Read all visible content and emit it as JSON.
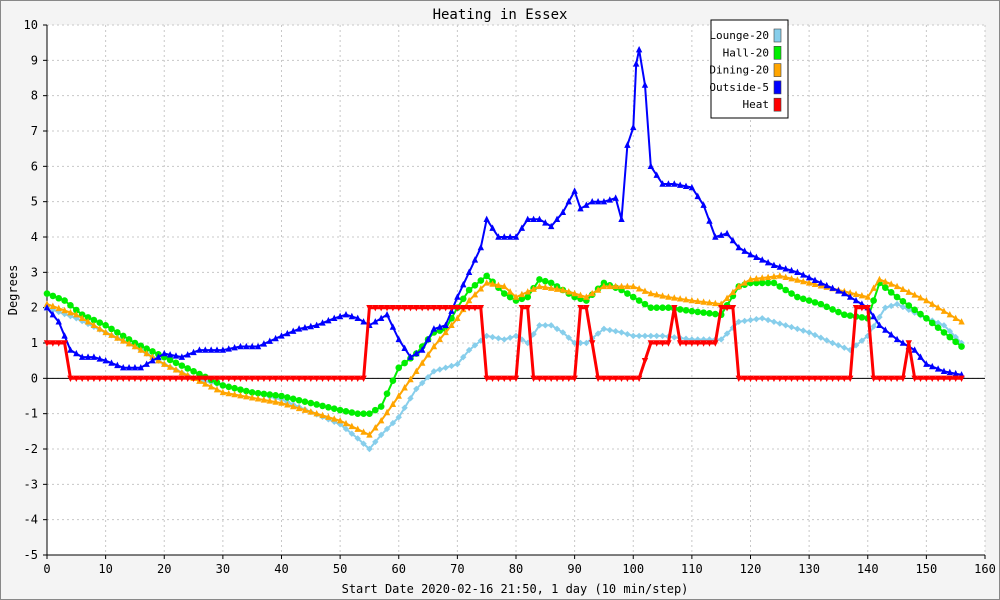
{
  "chart_data": {
    "type": "line",
    "title": "Heating in Essex",
    "xlabel": "Start Date 2020-02-16 21:50, 1 day (10 min/step)",
    "ylabel": "Degrees",
    "xlim": [
      0,
      160
    ],
    "ylim": [
      -5,
      10
    ],
    "xticks": [
      "0",
      "10",
      "20",
      "30",
      "40",
      "50",
      "60",
      "70",
      "80",
      "90",
      "100",
      "110",
      "120",
      "130",
      "140",
      "150",
      "160"
    ],
    "yticks": [
      "-5",
      "-4",
      "-3",
      "-2",
      "-1",
      "0",
      "1",
      "2",
      "3",
      "4",
      "5",
      "6",
      "7",
      "8",
      "9",
      "10"
    ],
    "grid": true,
    "legend_position": "top-right",
    "series": [
      {
        "name": "Lounge-20",
        "color": "#87ceeb",
        "marker": "diamond",
        "points": [
          [
            0,
            2.0
          ],
          [
            5,
            1.7
          ],
          [
            10,
            1.3
          ],
          [
            15,
            0.9
          ],
          [
            20,
            0.4
          ],
          [
            25,
            0.0
          ],
          [
            30,
            -0.2
          ],
          [
            40,
            -0.6
          ],
          [
            50,
            -1.3
          ],
          [
            53,
            -1.7
          ],
          [
            55,
            -2.0
          ],
          [
            57,
            -1.6
          ],
          [
            60,
            -1.1
          ],
          [
            63,
            -0.3
          ],
          [
            66,
            0.2
          ],
          [
            68,
            0.3
          ],
          [
            70,
            0.4
          ],
          [
            72,
            0.8
          ],
          [
            75,
            1.2
          ],
          [
            78,
            1.1
          ],
          [
            80,
            1.2
          ],
          [
            82,
            1.0
          ],
          [
            84,
            1.5
          ],
          [
            86,
            1.5
          ],
          [
            88,
            1.3
          ],
          [
            90,
            1.0
          ],
          [
            92,
            1.0
          ],
          [
            95,
            1.4
          ],
          [
            98,
            1.3
          ],
          [
            100,
            1.2
          ],
          [
            105,
            1.2
          ],
          [
            110,
            1.1
          ],
          [
            115,
            1.1
          ],
          [
            118,
            1.6
          ],
          [
            122,
            1.7
          ],
          [
            126,
            1.5
          ],
          [
            130,
            1.3
          ],
          [
            134,
            1.0
          ],
          [
            137,
            0.8
          ],
          [
            140,
            1.2
          ],
          [
            143,
            2.0
          ],
          [
            145,
            2.1
          ],
          [
            150,
            1.7
          ],
          [
            153,
            1.5
          ],
          [
            156,
            1.0
          ]
        ]
      },
      {
        "name": "Hall-20",
        "color": "#00ee00",
        "marker": "circle",
        "points": [
          [
            0,
            2.4
          ],
          [
            3,
            2.2
          ],
          [
            6,
            1.8
          ],
          [
            10,
            1.5
          ],
          [
            15,
            1.0
          ],
          [
            20,
            0.6
          ],
          [
            25,
            0.2
          ],
          [
            30,
            -0.2
          ],
          [
            35,
            -0.4
          ],
          [
            40,
            -0.5
          ],
          [
            45,
            -0.7
          ],
          [
            50,
            -0.9
          ],
          [
            53,
            -1.0
          ],
          [
            55,
            -1.0
          ],
          [
            57,
            -0.8
          ],
          [
            60,
            0.3
          ],
          [
            63,
            0.7
          ],
          [
            66,
            1.3
          ],
          [
            68,
            1.4
          ],
          [
            70,
            2.0
          ],
          [
            72,
            2.5
          ],
          [
            75,
            2.9
          ],
          [
            78,
            2.4
          ],
          [
            80,
            2.2
          ],
          [
            82,
            2.3
          ],
          [
            84,
            2.8
          ],
          [
            86,
            2.7
          ],
          [
            88,
            2.5
          ],
          [
            90,
            2.3
          ],
          [
            92,
            2.2
          ],
          [
            95,
            2.7
          ],
          [
            98,
            2.5
          ],
          [
            100,
            2.3
          ],
          [
            103,
            2.0
          ],
          [
            106,
            2.0
          ],
          [
            110,
            1.9
          ],
          [
            115,
            1.8
          ],
          [
            118,
            2.6
          ],
          [
            120,
            2.7
          ],
          [
            124,
            2.7
          ],
          [
            128,
            2.3
          ],
          [
            132,
            2.1
          ],
          [
            136,
            1.8
          ],
          [
            140,
            1.7
          ],
          [
            142,
            2.7
          ],
          [
            145,
            2.3
          ],
          [
            150,
            1.7
          ],
          [
            153,
            1.3
          ],
          [
            156,
            0.9
          ]
        ]
      },
      {
        "name": "Dining-20",
        "color": "#ffa500",
        "marker": "triangle",
        "points": [
          [
            0,
            2.1
          ],
          [
            5,
            1.8
          ],
          [
            10,
            1.3
          ],
          [
            15,
            0.9
          ],
          [
            20,
            0.4
          ],
          [
            25,
            0.0
          ],
          [
            30,
            -0.4
          ],
          [
            40,
            -0.7
          ],
          [
            50,
            -1.2
          ],
          [
            55,
            -1.6
          ],
          [
            57,
            -1.2
          ],
          [
            60,
            -0.5
          ],
          [
            63,
            0.2
          ],
          [
            66,
            0.9
          ],
          [
            68,
            1.3
          ],
          [
            70,
            1.7
          ],
          [
            72,
            2.2
          ],
          [
            75,
            2.7
          ],
          [
            78,
            2.6
          ],
          [
            80,
            2.3
          ],
          [
            84,
            2.6
          ],
          [
            88,
            2.5
          ],
          [
            90,
            2.4
          ],
          [
            92,
            2.3
          ],
          [
            95,
            2.6
          ],
          [
            100,
            2.6
          ],
          [
            103,
            2.4
          ],
          [
            106,
            2.3
          ],
          [
            110,
            2.2
          ],
          [
            115,
            2.1
          ],
          [
            118,
            2.6
          ],
          [
            120,
            2.8
          ],
          [
            125,
            2.9
          ],
          [
            130,
            2.7
          ],
          [
            135,
            2.5
          ],
          [
            140,
            2.3
          ],
          [
            142,
            2.8
          ],
          [
            145,
            2.6
          ],
          [
            150,
            2.2
          ],
          [
            153,
            1.9
          ],
          [
            156,
            1.6
          ]
        ]
      },
      {
        "name": "Outside-5",
        "color": "#0000ff",
        "marker": "triangle",
        "points": [
          [
            0,
            2.0
          ],
          [
            2,
            1.6
          ],
          [
            4,
            0.8
          ],
          [
            6,
            0.6
          ],
          [
            8,
            0.6
          ],
          [
            10,
            0.5
          ],
          [
            13,
            0.3
          ],
          [
            16,
            0.3
          ],
          [
            18,
            0.5
          ],
          [
            20,
            0.7
          ],
          [
            23,
            0.6
          ],
          [
            26,
            0.8
          ],
          [
            30,
            0.8
          ],
          [
            33,
            0.9
          ],
          [
            36,
            0.9
          ],
          [
            40,
            1.2
          ],
          [
            43,
            1.4
          ],
          [
            46,
            1.5
          ],
          [
            49,
            1.7
          ],
          [
            51,
            1.8
          ],
          [
            53,
            1.7
          ],
          [
            55,
            1.5
          ],
          [
            57,
            1.7
          ],
          [
            58,
            1.8
          ],
          [
            60,
            1.1
          ],
          [
            62,
            0.6
          ],
          [
            64,
            0.8
          ],
          [
            66,
            1.4
          ],
          [
            68,
            1.5
          ],
          [
            70,
            2.3
          ],
          [
            72,
            3.0
          ],
          [
            74,
            3.7
          ],
          [
            75,
            4.5
          ],
          [
            77,
            4.0
          ],
          [
            80,
            4.0
          ],
          [
            82,
            4.5
          ],
          [
            84,
            4.5
          ],
          [
            86,
            4.3
          ],
          [
            88,
            4.7
          ],
          [
            90,
            5.3
          ],
          [
            91,
            4.8
          ],
          [
            93,
            5.0
          ],
          [
            95,
            5.0
          ],
          [
            97,
            5.1
          ],
          [
            98,
            4.5
          ],
          [
            99,
            6.6
          ],
          [
            100,
            7.1
          ],
          [
            100.5,
            8.9
          ],
          [
            101,
            9.3
          ],
          [
            102,
            8.3
          ],
          [
            103,
            6.0
          ],
          [
            105,
            5.5
          ],
          [
            107,
            5.5
          ],
          [
            110,
            5.4
          ],
          [
            112,
            4.9
          ],
          [
            114,
            4.0
          ],
          [
            116,
            4.1
          ],
          [
            118,
            3.7
          ],
          [
            120,
            3.5
          ],
          [
            124,
            3.2
          ],
          [
            128,
            3.0
          ],
          [
            132,
            2.7
          ],
          [
            136,
            2.4
          ],
          [
            138,
            2.2
          ],
          [
            140,
            2.0
          ],
          [
            142,
            1.5
          ],
          [
            145,
            1.1
          ],
          [
            148,
            0.8
          ],
          [
            150,
            0.4
          ],
          [
            153,
            0.2
          ],
          [
            156,
            0.1
          ]
        ]
      },
      {
        "name": "Heat",
        "color": "#ff0000",
        "marker": "triangle-down",
        "points": [
          [
            0,
            1
          ],
          [
            3,
            1
          ],
          [
            4,
            0
          ],
          [
            54,
            0
          ],
          [
            55,
            2
          ],
          [
            74,
            2
          ],
          [
            75,
            0
          ],
          [
            80,
            0
          ],
          [
            81,
            2
          ],
          [
            82,
            2
          ],
          [
            83,
            0
          ],
          [
            90,
            0
          ],
          [
            91,
            2
          ],
          [
            92,
            2
          ],
          [
            94,
            0
          ],
          [
            101,
            0
          ],
          [
            103,
            1
          ],
          [
            106,
            1
          ],
          [
            107,
            2
          ],
          [
            108,
            1
          ],
          [
            114,
            1
          ],
          [
            115,
            2
          ],
          [
            117,
            2
          ],
          [
            118,
            0
          ],
          [
            137,
            0
          ],
          [
            138,
            2
          ],
          [
            140,
            2
          ],
          [
            141,
            0
          ],
          [
            146,
            0
          ],
          [
            147,
            1
          ],
          [
            148,
            0
          ],
          [
            156,
            0
          ]
        ]
      }
    ]
  }
}
